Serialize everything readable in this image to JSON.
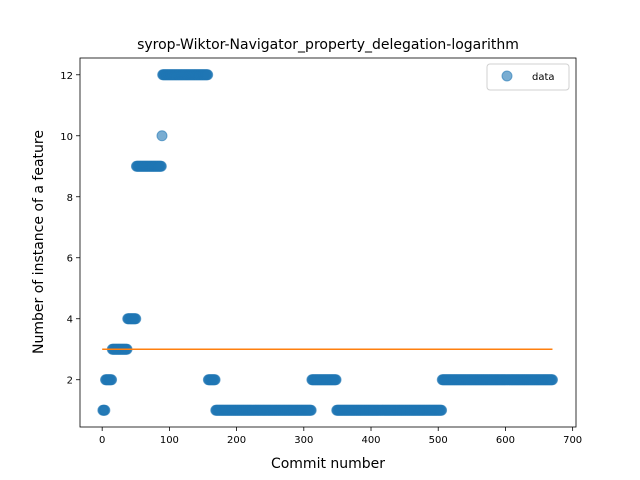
{
  "chart_data": {
    "type": "scatter",
    "title": "syrop-Wiktor-Navigator_property_delegation-logarithm",
    "xlabel": "Commit number",
    "ylabel": "Number of instance of a feature",
    "xlim": [
      -33,
      705
    ],
    "ylim": [
      0.45,
      12.55
    ],
    "xticks": [
      0,
      100,
      200,
      300,
      400,
      500,
      600,
      700
    ],
    "yticks": [
      2,
      4,
      6,
      8,
      10,
      12
    ],
    "legend": {
      "position": "top-right",
      "entries": [
        "data"
      ]
    },
    "colors": {
      "data": "#1f77b4",
      "fit": "#ff7f0e"
    },
    "series": [
      {
        "name": "data",
        "kind": "scatter",
        "segments": [
          {
            "x_start": 1,
            "x_end": 4,
            "y": 1
          },
          {
            "x_start": 5,
            "x_end": 14,
            "y": 2
          },
          {
            "x_start": 15,
            "x_end": 37,
            "y": 3
          },
          {
            "x_start": 38,
            "x_end": 50,
            "y": 4
          },
          {
            "x_start": 51,
            "x_end": 88,
            "y": 9
          },
          {
            "x_start": 89,
            "x_end": 89,
            "y": 10
          },
          {
            "x_start": 90,
            "x_end": 157,
            "y": 12
          },
          {
            "x_start": 158,
            "x_end": 168,
            "y": 2
          },
          {
            "x_start": 169,
            "x_end": 311,
            "y": 1
          },
          {
            "x_start": 312,
            "x_end": 348,
            "y": 2
          },
          {
            "x_start": 349,
            "x_end": 505,
            "y": 1
          },
          {
            "x_start": 506,
            "x_end": 670,
            "y": 2
          }
        ]
      },
      {
        "kind": "line",
        "x": [
          0,
          670
        ],
        "y": [
          3,
          3
        ]
      }
    ]
  }
}
